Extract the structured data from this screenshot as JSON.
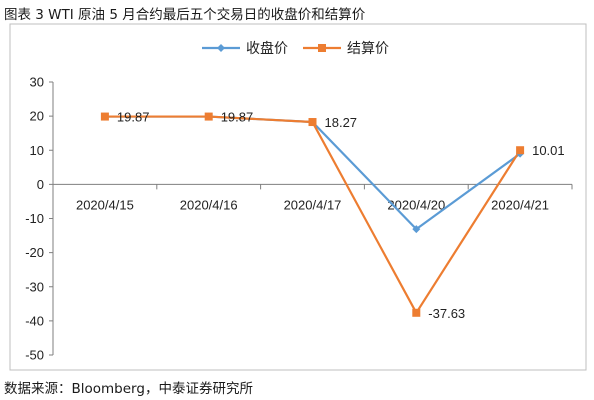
{
  "title": "图表 3 WTI 原油 5 月合约最后五个交易日的收盘价和结算价",
  "source": "数据来源：Bloomberg，中泰证券研究所",
  "colors": {
    "close": "#5b9bd5",
    "settle": "#ed7d31",
    "axis": "#7f7f7f",
    "frame": "#bfbfbf"
  },
  "chart_data": {
    "type": "line",
    "title": "图表 3 WTI 原油 5 月合约最后五个交易日的收盘价和结算价",
    "categories": [
      "2020/4/15",
      "2020/4/16",
      "2020/4/17",
      "2020/4/20",
      "2020/4/21"
    ],
    "series": [
      {
        "name": "收盘价",
        "values": [
          19.87,
          19.87,
          18.27,
          -13.1,
          9.0
        ],
        "marker": "diamond"
      },
      {
        "name": "结算价",
        "values": [
          19.87,
          19.87,
          18.27,
          -37.63,
          10.01
        ],
        "marker": "square"
      }
    ],
    "data_labels": [
      "19.87",
      "19.87",
      "18.27",
      "-37.63",
      "10.01"
    ],
    "ylim": [
      -50,
      30
    ],
    "yticks": [
      30,
      20,
      10,
      0,
      -10,
      -20,
      -30,
      -40,
      -50
    ],
    "legend": "top-center",
    "grid": false
  }
}
